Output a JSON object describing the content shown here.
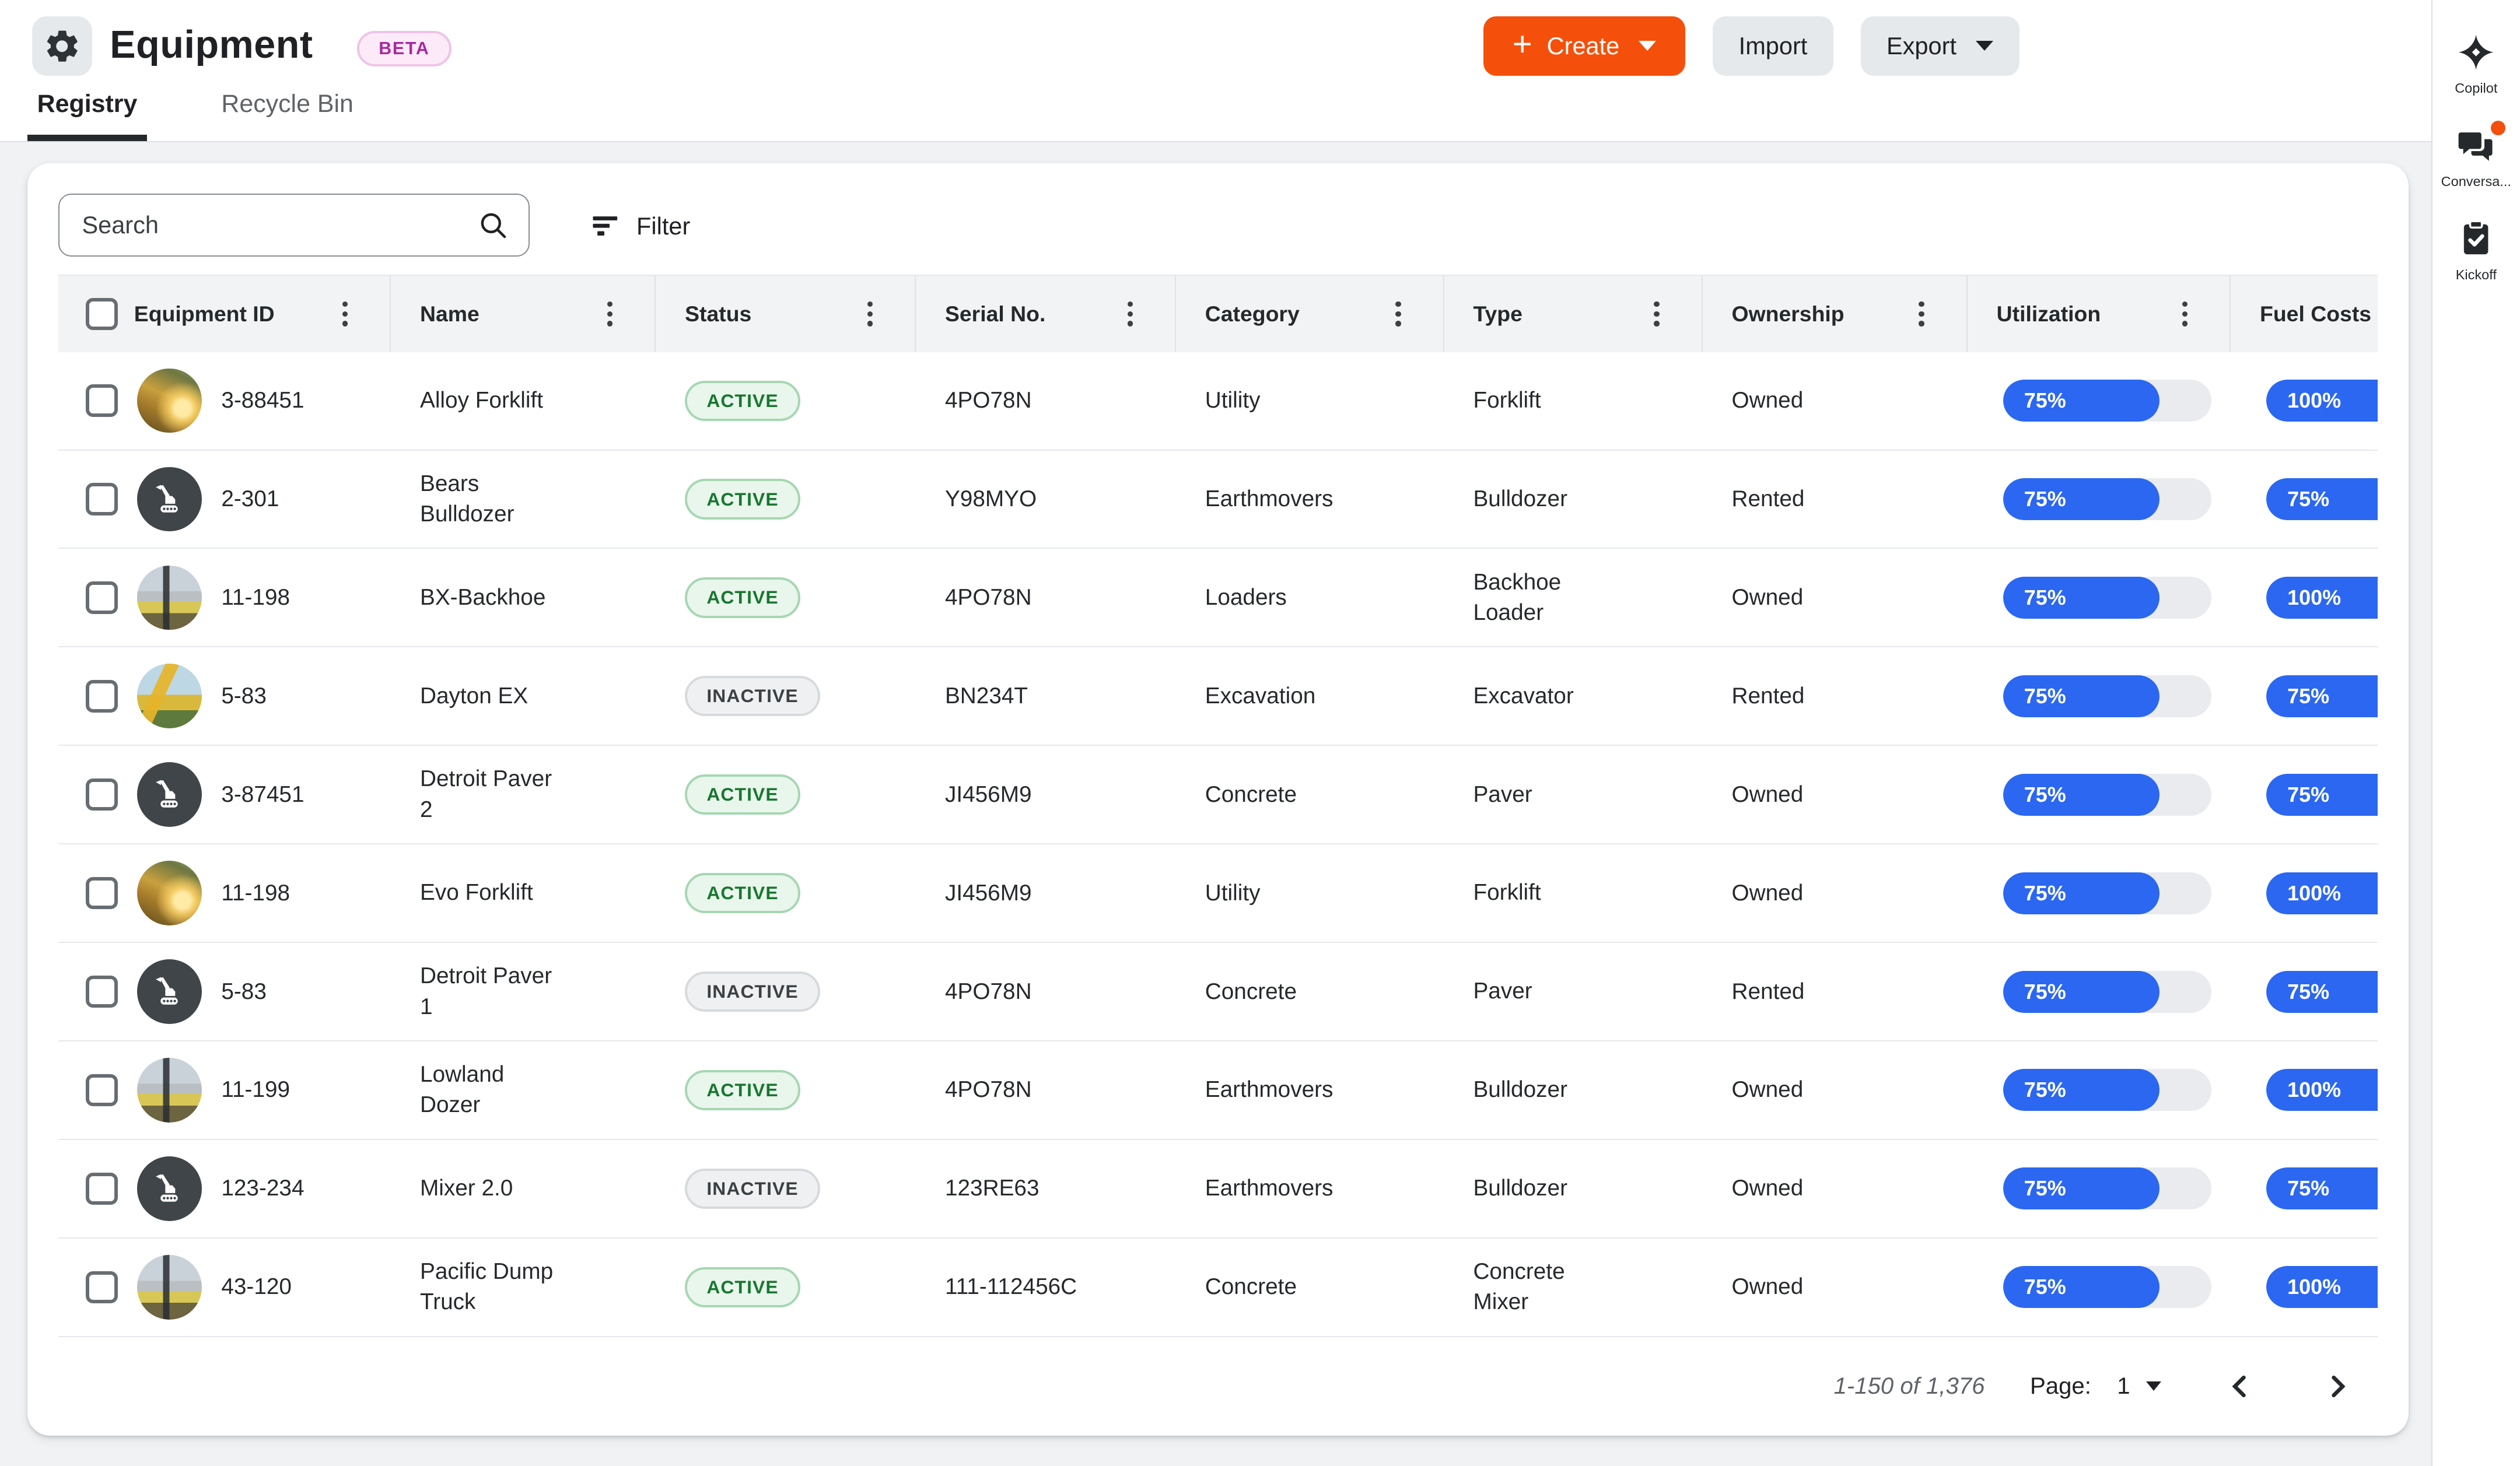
{
  "header": {
    "title": "Equipment",
    "beta_label": "BETA",
    "create_label": "Create",
    "import_label": "Import",
    "export_label": "Export"
  },
  "tabs": [
    {
      "label": "Registry",
      "active": true
    },
    {
      "label": "Recycle Bin",
      "active": false
    }
  ],
  "sidebar": {
    "items": [
      {
        "label": "Copilot",
        "icon": "copilot-sparkle-icon",
        "notification": false
      },
      {
        "label": "Conversa...",
        "icon": "conversations-icon",
        "notification": true
      },
      {
        "label": "Kickoff",
        "icon": "kickoff-clipboard-icon",
        "notification": false
      }
    ]
  },
  "toolbar": {
    "search_placeholder": "Search",
    "filter_label": "Filter"
  },
  "table": {
    "columns": [
      "Equipment ID",
      "Name",
      "Status",
      "Serial No.",
      "Category",
      "Type",
      "Ownership",
      "Utilization",
      "Fuel Costs"
    ],
    "rows": [
      {
        "id": "3-88451",
        "name": "Alloy Forklift",
        "status": "ACTIVE",
        "serial": "4PO78N",
        "category": "Utility",
        "type": "Forklift",
        "ownership": "Owned",
        "utilization": 75,
        "fuel_costs": 100,
        "avatar": "photo-dozer"
      },
      {
        "id": "2-301",
        "name": "Bears Bulldozer",
        "status": "ACTIVE",
        "serial": "Y98MYO",
        "category": "Earthmovers",
        "type": "Bulldozer",
        "ownership": "Rented",
        "utilization": 75,
        "fuel_costs": 75,
        "avatar": "icon"
      },
      {
        "id": "11-198",
        "name": "BX-Backhoe",
        "status": "ACTIVE",
        "serial": "4PO78N",
        "category": "Loaders",
        "type": "Backhoe Loader",
        "ownership": "Owned",
        "utilization": 75,
        "fuel_costs": 100,
        "avatar": "photo-forklift"
      },
      {
        "id": "5-83",
        "name": "Dayton EX",
        "status": "INACTIVE",
        "serial": "BN234T",
        "category": "Excavation",
        "type": "Excavator",
        "ownership": "Rented",
        "utilization": 75,
        "fuel_costs": 75,
        "avatar": "photo-excavator"
      },
      {
        "id": "3-87451",
        "name": "Detroit Paver 2",
        "status": "ACTIVE",
        "serial": "JI456M9",
        "category": "Concrete",
        "type": "Paver",
        "ownership": "Owned",
        "utilization": 75,
        "fuel_costs": 75,
        "avatar": "icon"
      },
      {
        "id": "11-198",
        "name": "Evo Forklift",
        "status": "ACTIVE",
        "serial": "JI456M9",
        "category": "Utility",
        "type": "Forklift",
        "ownership": "Owned",
        "utilization": 75,
        "fuel_costs": 100,
        "avatar": "photo-dozer"
      },
      {
        "id": "5-83",
        "name": "Detroit Paver 1",
        "status": "INACTIVE",
        "serial": "4PO78N",
        "category": "Concrete",
        "type": "Paver",
        "ownership": "Rented",
        "utilization": 75,
        "fuel_costs": 75,
        "avatar": "icon"
      },
      {
        "id": "11-199",
        "name": "Lowland Dozer",
        "status": "ACTIVE",
        "serial": "4PO78N",
        "category": "Earthmovers",
        "type": "Bulldozer",
        "ownership": "Owned",
        "utilization": 75,
        "fuel_costs": 100,
        "avatar": "photo-forklift"
      },
      {
        "id": "123-234",
        "name": "Mixer 2.0",
        "status": "INACTIVE",
        "serial": "123RE63",
        "category": "Earthmovers",
        "type": "Bulldozer",
        "ownership": "Owned",
        "utilization": 75,
        "fuel_costs": 75,
        "avatar": "icon"
      },
      {
        "id": "43-120",
        "name": "Pacific Dump Truck",
        "status": "ACTIVE",
        "serial": "111-112456C",
        "category": "Concrete",
        "type": "Concrete Mixer",
        "ownership": "Owned",
        "utilization": 75,
        "fuel_costs": 100,
        "avatar": "photo-forklift"
      }
    ]
  },
  "pagination": {
    "range_label": "1-150 of 1,376",
    "page_label": "Page:",
    "current_page": "1"
  },
  "colors": {
    "accent_orange": "#f4500c",
    "bar_blue": "#2b67f0",
    "active_green_text": "#17772f",
    "beta_purple": "#a62aa0",
    "page_background": "#f0f2f4"
  }
}
